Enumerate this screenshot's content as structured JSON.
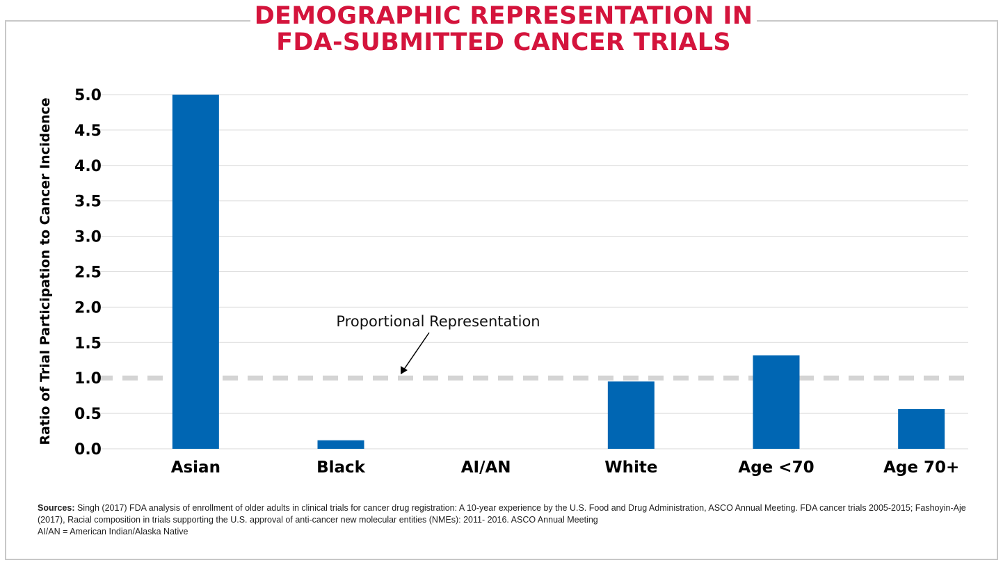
{
  "title_lines": [
    "DEMOGRAPHIC REPRESENTATION IN",
    "FDA-SUBMITTED CANCER TRIALS"
  ],
  "colors": {
    "title": "#d4143c",
    "bar": "#0066b3",
    "grid": "#d9d9d9",
    "reference_line": "#d4d4d4",
    "frame": "#c8c8c8"
  },
  "chart_data": {
    "type": "bar",
    "categories": [
      "Asian",
      "Black",
      "AI/AN",
      "White",
      "Age <70",
      "Age 70+"
    ],
    "values": [
      5.0,
      0.12,
      0.0,
      0.95,
      1.32,
      0.56
    ],
    "ylabel": "Ratio of Trial Participation to Cancer Incidence",
    "ylim": [
      0,
      5
    ],
    "yticks": [
      0.0,
      0.5,
      1.0,
      1.5,
      2.0,
      2.5,
      3.0,
      3.5,
      4.0,
      4.5,
      5.0
    ],
    "ytick_labels": [
      "0.0",
      "0.5",
      "1.0",
      "1.5",
      "2.0",
      "2.5",
      "3.0",
      "3.5",
      "4.0",
      "4.5",
      "5.0"
    ],
    "grid": true,
    "reference_line": {
      "y": 1.0,
      "style": "dashed"
    },
    "annotation": {
      "text": "Proportional Representation",
      "points_to_y": 1.0
    }
  },
  "sources": {
    "label": "Sources:",
    "text": " Singh (2017) FDA analysis of enrollment of older adults in clinical trials for cancer drug registration: A 10-year experience by the U.S. Food and Drug Administration, ASCO Annual Meeting.  FDA cancer trials 2005-2015; Fashoyin-Aje (2017), Racial composition in trials supporting the U.S. approval of anti-cancer new molecular entities (NMEs): 2011- 2016. ASCO Annual Meeting",
    "footnote": "AI/AN = American Indian/Alaska Native"
  }
}
